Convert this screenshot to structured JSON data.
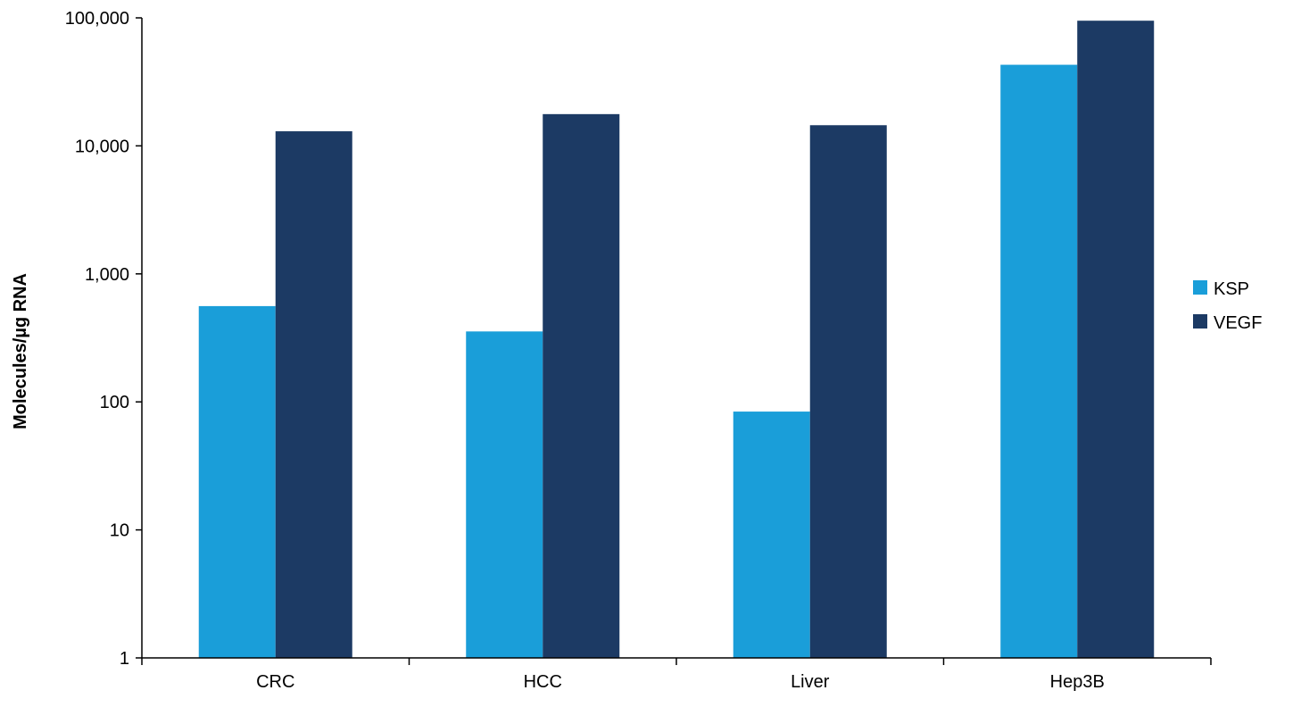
{
  "chart_data": {
    "type": "bar",
    "title": "",
    "xlabel": "",
    "ylabel": "Molecules/µg RNA",
    "yscale": "log",
    "ylim": [
      1,
      100000
    ],
    "yticks": [
      1,
      10,
      100,
      1000,
      10000,
      100000
    ],
    "ytick_labels": [
      "1",
      "10",
      "100",
      "1,000",
      "10,000",
      "100,000"
    ],
    "categories": [
      "CRC",
      "HCC",
      "Liver",
      "Hep3B"
    ],
    "series": [
      {
        "name": "KSP",
        "color": "#1a9ed9",
        "values": [
          560,
          355,
          84,
          43000
        ]
      },
      {
        "name": "VEGF",
        "color": "#1c3a64",
        "values": [
          13000,
          17700,
          14500,
          95000
        ]
      }
    ],
    "legend": {
      "position": "right",
      "items": [
        "KSP",
        "VEGF"
      ]
    },
    "grid": false
  }
}
